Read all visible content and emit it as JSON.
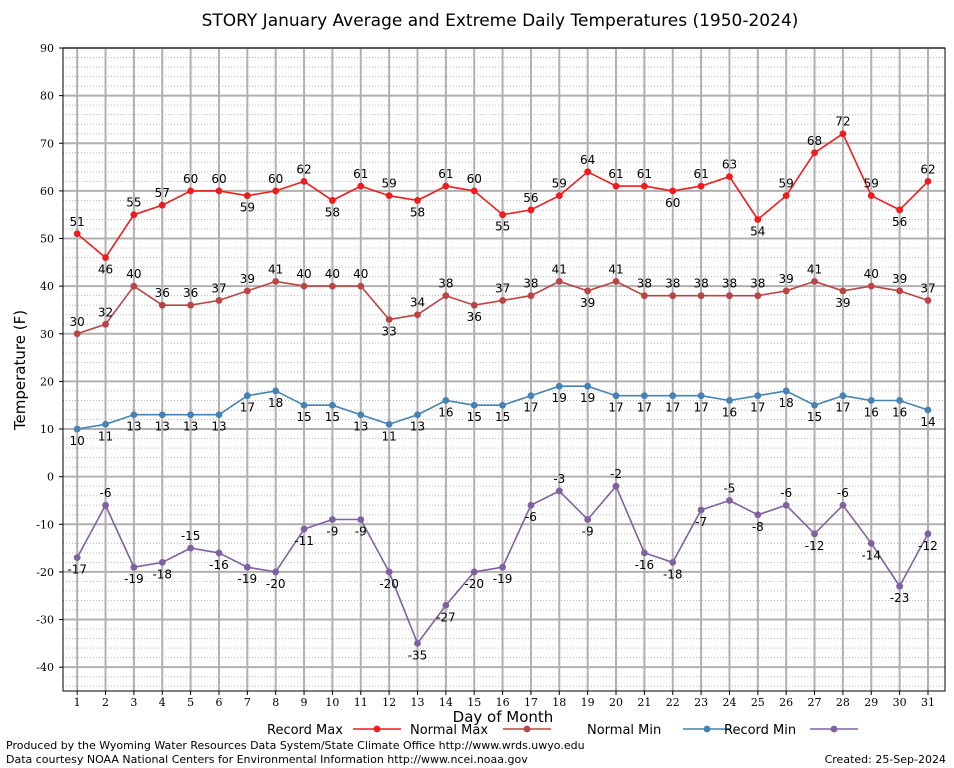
{
  "chart_data": {
    "type": "line",
    "title": "STORY January Average and Extreme Daily Temperatures (1950-2024)",
    "xlabel": "Day of Month",
    "ylabel": "Temperature (F)",
    "ylim": [
      -45,
      90
    ],
    "yticks": [
      90,
      80,
      70,
      60,
      50,
      40,
      30,
      20,
      10,
      0,
      -10,
      -20,
      -30,
      -40
    ],
    "grid": true,
    "legend_position": "bottom",
    "x": [
      1,
      2,
      3,
      4,
      5,
      6,
      7,
      8,
      9,
      10,
      11,
      12,
      13,
      14,
      15,
      16,
      17,
      18,
      19,
      20,
      21,
      22,
      23,
      24,
      25,
      26,
      27,
      28,
      29,
      30,
      31
    ],
    "series": [
      {
        "name": "Record Max",
        "color": "#ee1c1c",
        "values": [
          51,
          46,
          55,
          57,
          60,
          60,
          59,
          60,
          62,
          58,
          61,
          59,
          58,
          61,
          60,
          55,
          56,
          59,
          64,
          61,
          61,
          60,
          61,
          63,
          54,
          59,
          68,
          72,
          59,
          56,
          62
        ]
      },
      {
        "name": "Normal Max",
        "color": "#bb4444",
        "values": [
          30,
          32,
          40,
          36,
          36,
          37,
          39,
          41,
          40,
          40,
          40,
          33,
          34,
          38,
          36,
          37,
          38,
          41,
          39,
          41,
          38,
          38,
          38,
          38,
          38,
          39,
          41,
          39,
          40,
          39,
          37
        ]
      },
      {
        "name": "Normal Min",
        "color": "#4682b4",
        "values": [
          10,
          11,
          13,
          13,
          13,
          13,
          17,
          18,
          15,
          15,
          13,
          11,
          13,
          16,
          15,
          15,
          17,
          19,
          19,
          17,
          17,
          17,
          17,
          16,
          17,
          18,
          15,
          17,
          16,
          16,
          14
        ]
      },
      {
        "name": "Record Min",
        "color": "#8060a0",
        "values": [
          -17,
          -6,
          -19,
          -18,
          -15,
          -16,
          -19,
          -20,
          -11,
          -9,
          -9,
          -20,
          -35,
          -27,
          -20,
          -19,
          -6,
          -3,
          -9,
          -2,
          -16,
          -18,
          -7,
          -5,
          -8,
          -6,
          -12,
          -6,
          -14,
          -23,
          -12
        ]
      }
    ]
  },
  "footer": {
    "produced_by": "Produced by the Wyoming Water Resources Data System/State Climate Office http://www.wrds.uwyo.edu",
    "data_courtesy": "Data courtesy NOAA National Centers for Environmental Information http://www.ncei.noaa.gov",
    "created": "Created:  25-Sep-2024"
  }
}
